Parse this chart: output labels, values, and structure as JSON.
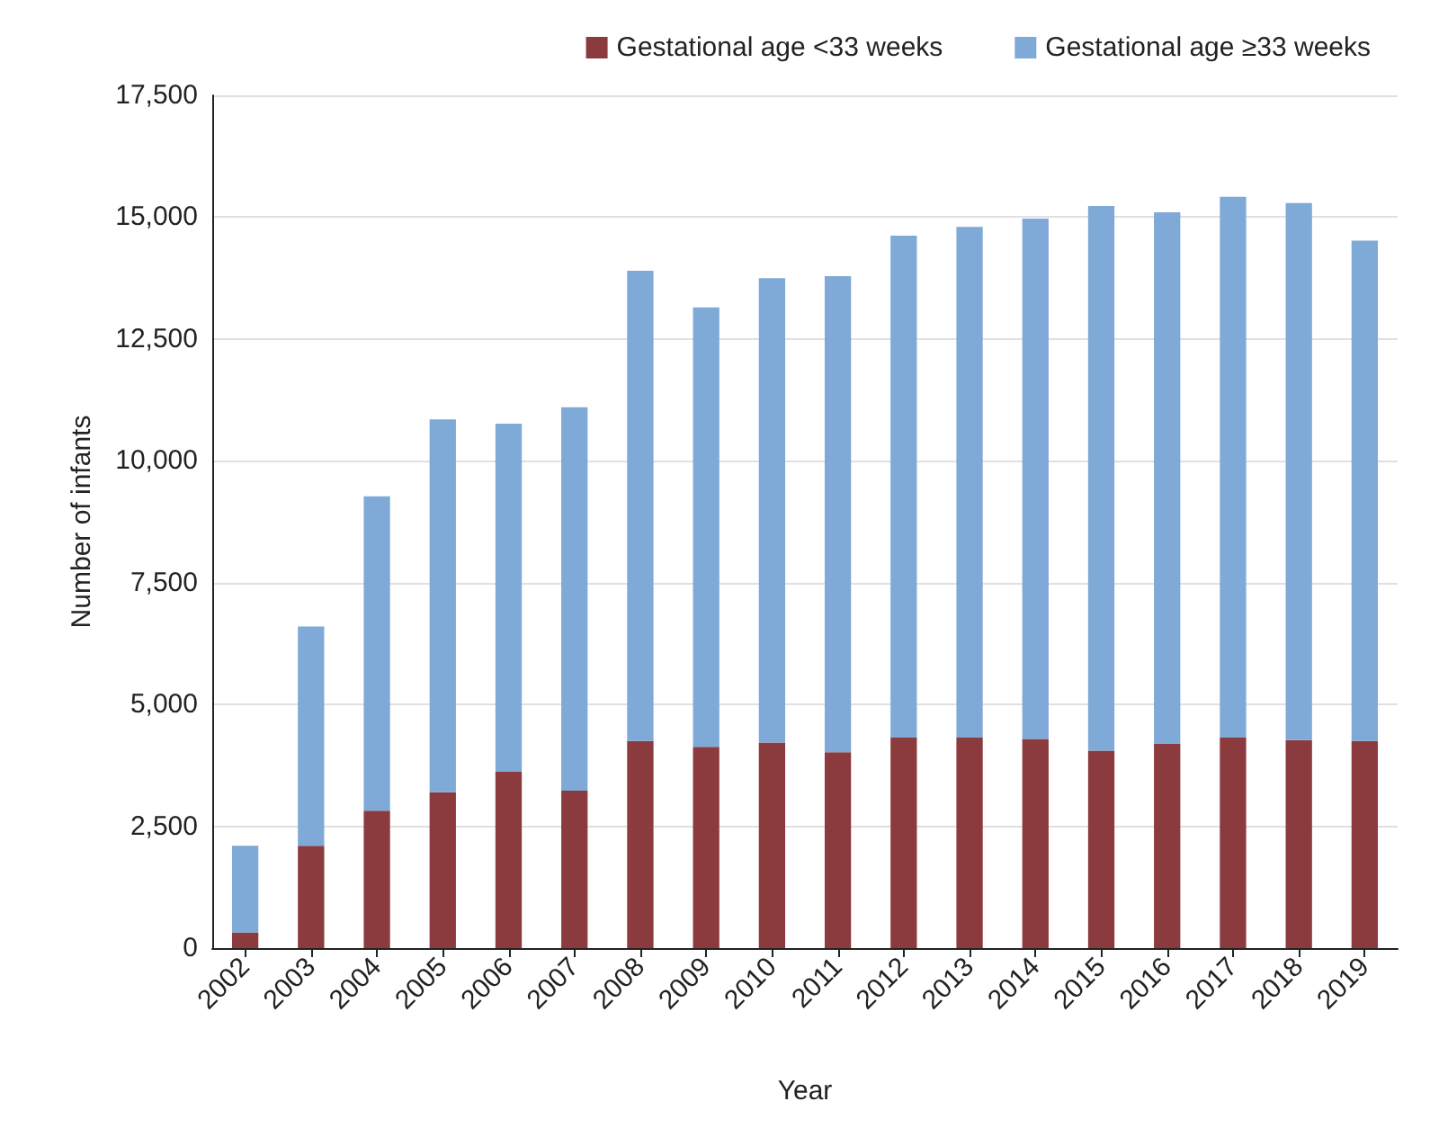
{
  "chart_data": {
    "type": "bar",
    "stacked": true,
    "xlabel": "Year",
    "ylabel": "Number of infants",
    "categories": [
      "2002",
      "2003",
      "2004",
      "2005",
      "2006",
      "2007",
      "2008",
      "2009",
      "2010",
      "2011",
      "2012",
      "2013",
      "2014",
      "2015",
      "2016",
      "2017",
      "2018",
      "2019"
    ],
    "series": [
      {
        "name": "Gestational age <33 weeks",
        "color": "#8b3a3e",
        "values": [
          320,
          2100,
          2820,
          3200,
          3620,
          3230,
          4250,
          4130,
          4220,
          4020,
          4320,
          4320,
          4290,
          4050,
          4200,
          4320,
          4270,
          4250
        ]
      },
      {
        "name": "Gestational age ≥33 weeks",
        "color": "#7fa9d6",
        "values": [
          1780,
          4500,
          6450,
          7650,
          7140,
          7870,
          9650,
          9020,
          9530,
          9770,
          10300,
          10480,
          10680,
          11180,
          10900,
          11100,
          11020,
          10270
        ]
      }
    ],
    "ylim": [
      0,
      17500
    ],
    "yticks": [
      0,
      {
        "value": 2500,
        "label": "2,500"
      },
      {
        "value": 5000,
        "label": "5,000"
      },
      {
        "value": 7500,
        "label": "7,500"
      },
      {
        "value": 10000,
        "label": "10,000"
      },
      {
        "value": 12500,
        "label": "12,500"
      },
      {
        "value": 15000,
        "label": "15,000"
      },
      {
        "value": 17500,
        "label": "17,500"
      }
    ],
    "grid": "y",
    "legend": "top right"
  }
}
